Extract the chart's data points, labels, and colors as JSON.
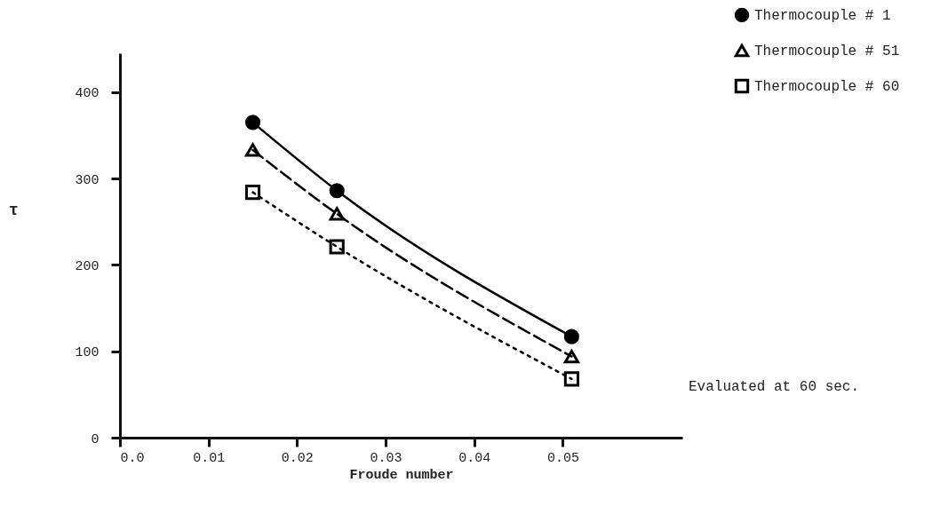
{
  "chart_data": {
    "type": "line",
    "xlabel": "Froude number",
    "ylabel": "τ",
    "annotations": [
      "Evaluated at 60 sec."
    ],
    "xlim": [
      0,
      0.0635
    ],
    "xticks": [
      {
        "value": 0,
        "label": "0.0"
      },
      0.01,
      0.02,
      0.03,
      0.04,
      0.05
    ],
    "ylim": [
      0,
      445
    ],
    "yticks": [
      0,
      100,
      200,
      300,
      400
    ],
    "grid": false,
    "legend": "top right",
    "series": [
      {
        "name": "Thermocouple # 1",
        "color": "#000000",
        "marker": "circle",
        "line_style": "solid",
        "x": [
          0.015,
          0.0245,
          0.051
        ],
        "values": [
          365,
          286,
          117
        ]
      },
      {
        "name": "Thermocouple # 51",
        "color": "#000000",
        "marker": "triangle",
        "line_style": "dashed",
        "x": [
          0.015,
          0.0245,
          0.051
        ],
        "values": [
          333,
          259,
          94
        ]
      },
      {
        "name": "Thermocouple # 60",
        "color": "#000000",
        "marker": "square",
        "line_style": "dotted",
        "x": [
          0.015,
          0.0245,
          0.051
        ],
        "values": [
          284,
          221,
          68
        ]
      }
    ]
  }
}
